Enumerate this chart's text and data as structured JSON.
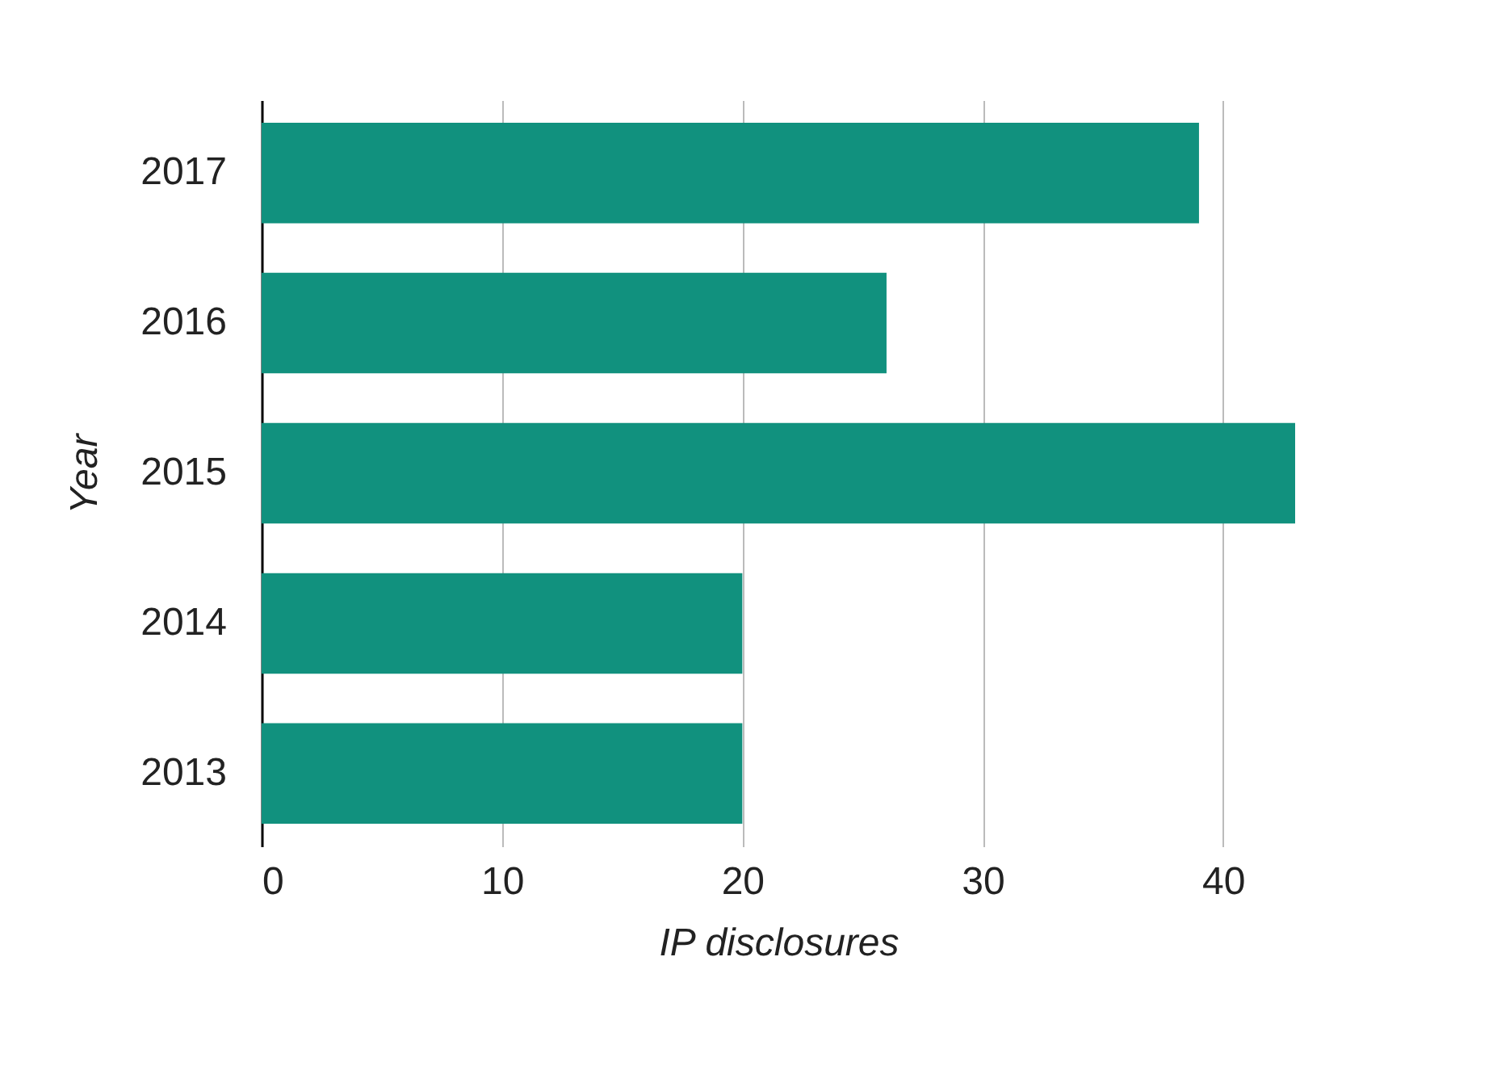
{
  "chart_data": {
    "type": "bar",
    "orientation": "horizontal",
    "xlabel": "IP disclosures",
    "ylabel": "Year",
    "categories": [
      "2017",
      "2016",
      "2015",
      "2014",
      "2013"
    ],
    "values": [
      39,
      26,
      43,
      20,
      20
    ],
    "color": "#11917e",
    "xlim": [
      0,
      43
    ],
    "xticks": [
      0,
      10,
      20,
      30,
      40
    ],
    "grid": "x"
  }
}
